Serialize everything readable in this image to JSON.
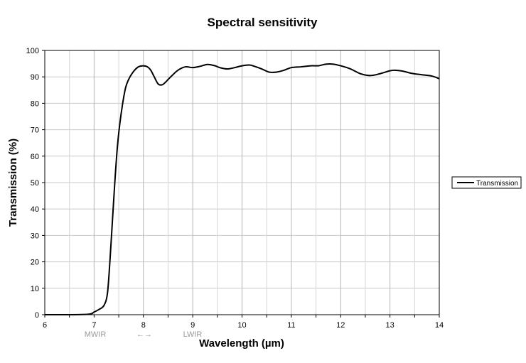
{
  "chart_data": {
    "type": "line",
    "title": "Spectral sensitivity",
    "xlabel": "Wavelength (µm)",
    "ylabel": "Transmission (%)",
    "xlim": [
      6,
      14
    ],
    "ylim": [
      0,
      100
    ],
    "x_ticks": [
      6,
      7,
      8,
      9,
      10,
      11,
      12,
      13,
      14
    ],
    "y_ticks": [
      0,
      10,
      20,
      30,
      40,
      50,
      60,
      70,
      80,
      90,
      100
    ],
    "grid": true,
    "legend_position": "right",
    "band_labels": {
      "mwir": "MWIR",
      "arrow": "←→",
      "lwir": "LWIR"
    },
    "colors": {
      "line": "#000000",
      "grid": "#c8c8c8",
      "band_label": "#999999"
    },
    "series": [
      {
        "name": "Transmission",
        "x": [
          6.0,
          6.5,
          6.9,
          7.0,
          7.1,
          7.2,
          7.27,
          7.32,
          7.37,
          7.42,
          7.47,
          7.52,
          7.58,
          7.64,
          7.7,
          7.76,
          7.82,
          7.9,
          8.0,
          8.08,
          8.15,
          8.22,
          8.3,
          8.38,
          8.45,
          8.5,
          8.58,
          8.7,
          8.85,
          9.0,
          9.15,
          9.3,
          9.45,
          9.55,
          9.7,
          9.85,
          10.0,
          10.15,
          10.25,
          10.4,
          10.55,
          10.7,
          10.85,
          11.0,
          11.2,
          11.4,
          11.55,
          11.7,
          11.85,
          12.0,
          12.2,
          12.4,
          12.6,
          12.8,
          13.0,
          13.1,
          13.25,
          13.45,
          13.65,
          13.85,
          14.0
        ],
        "y": [
          0,
          0,
          0.2,
          1,
          2,
          3.5,
          8,
          20,
          35,
          50,
          63,
          72,
          80,
          86,
          89,
          91,
          92.5,
          93.8,
          94.2,
          93.8,
          92.5,
          90,
          87.3,
          87,
          88,
          89,
          90.5,
          92.5,
          93.8,
          93.5,
          94,
          94.7,
          94.2,
          93.5,
          93,
          93.5,
          94.2,
          94.5,
          94,
          93,
          91.8,
          91.8,
          92.5,
          93.5,
          93.8,
          94.2,
          94.2,
          94.8,
          94.8,
          94.2,
          93,
          91.2,
          90.5,
          91.2,
          92.3,
          92.5,
          92.2,
          91.3,
          90.8,
          90.3,
          89.3
        ]
      }
    ]
  }
}
